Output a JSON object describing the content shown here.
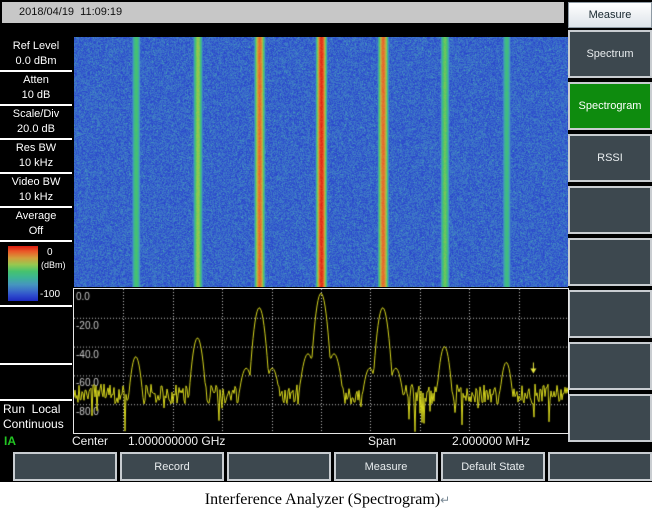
{
  "window": {
    "timestamp": "2018/04/19  11:09:19",
    "caption_text": "Interference Analyzer (Spectrogram)",
    "caption_mark": "↵"
  },
  "left_panel": {
    "params": [
      {
        "label": "Ref Level",
        "value": "0.0 dBm"
      },
      {
        "label": "Atten",
        "value": "10 dB"
      },
      {
        "label": "Scale/Div",
        "value": "20.0 dB"
      },
      {
        "label": "Res BW",
        "value": "10 kHz"
      },
      {
        "label": "Video BW",
        "value": "10 kHz"
      },
      {
        "label": "Average",
        "value": "Off"
      }
    ],
    "colorbar": {
      "top_label": "0",
      "unit_label": "(dBm)",
      "bottom_label": "-100"
    },
    "run_state_line1": "Run  Local",
    "run_state_line2": "Continuous",
    "mode_indicator": "IA"
  },
  "right_panel": {
    "header": "Measure",
    "buttons": [
      {
        "label": "Spectrum",
        "active": false
      },
      {
        "label": "Spectrogram",
        "active": true
      },
      {
        "label": "RSSI",
        "active": false
      },
      {
        "label": "",
        "active": false
      },
      {
        "label": "",
        "active": false
      },
      {
        "label": "",
        "active": false
      },
      {
        "label": "",
        "active": false
      },
      {
        "label": "",
        "active": false
      }
    ],
    "active_color": "#0e8b0e"
  },
  "status_bar": {
    "center_label": "Center",
    "center_value": "1.000000000 GHz",
    "span_label": "Span",
    "span_value": "2.000000 MHz"
  },
  "bottom_buttons": [
    {
      "label": ""
    },
    {
      "label": "Record"
    },
    {
      "label": ""
    },
    {
      "label": "Measure"
    },
    {
      "label": "Default State"
    },
    {
      "label": ""
    }
  ],
  "chart_data": {
    "type": "heatmap",
    "subtype": "spectrogram_with_spectrum_trace",
    "x_axis": {
      "center": "1.000000000 GHz",
      "span": "2.000000 MHz",
      "divisions": 10
    },
    "y_axis": {
      "labels": [
        "0.0",
        "-20.0",
        "-40.0",
        "-60.0",
        "-80.0"
      ],
      "ref_level_dbm": 0,
      "range_dbm": [
        0,
        -100
      ],
      "scale_per_div_db": 20
    },
    "signals": [
      {
        "offset_mhz": -0.75,
        "peak_dbm": -47
      },
      {
        "offset_mhz": -0.5,
        "peak_dbm": -34
      },
      {
        "offset_mhz": -0.25,
        "peak_dbm": -13
      },
      {
        "offset_mhz": 0.0,
        "peak_dbm": -3
      },
      {
        "offset_mhz": 0.25,
        "peak_dbm": -13
      },
      {
        "offset_mhz": 0.5,
        "peak_dbm": -40
      },
      {
        "offset_mhz": 0.75,
        "peak_dbm": -51
      }
    ],
    "noise_floor_dbm": -72,
    "marker": {
      "offset_mhz": 0.86,
      "dbm": -58
    },
    "trace_color": "#d6d61e",
    "grid_color": "#c0c0c0",
    "colormap": [
      [
        0.0,
        "#dc1e10"
      ],
      [
        0.1,
        "#eb5a28"
      ],
      [
        0.22,
        "#d2a03c"
      ],
      [
        0.34,
        "#96c850"
      ],
      [
        0.46,
        "#46c36e"
      ],
      [
        0.58,
        "#3cb496"
      ],
      [
        0.7,
        "#4696be"
      ],
      [
        0.8,
        "#3c73c8"
      ],
      [
        0.9,
        "#2d4bcd"
      ],
      [
        1.0,
        "#1c28be"
      ]
    ]
  }
}
